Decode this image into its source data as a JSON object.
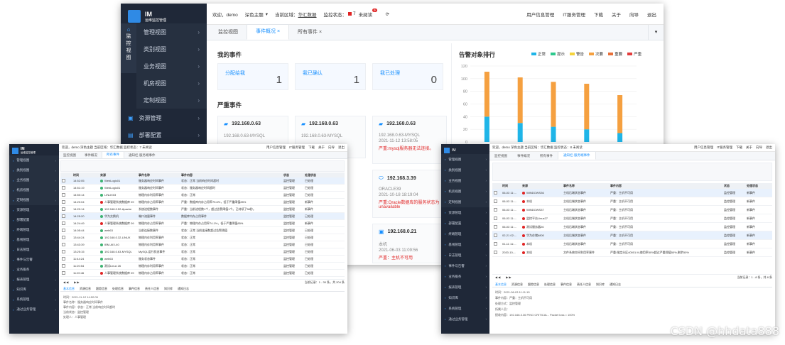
{
  "main_window": {
    "logo_text": "IM",
    "logo_sub": "运维监控管理",
    "side_tab": [
      "监",
      "控",
      "视",
      "图"
    ],
    "menu": [
      {
        "label": "管理视图"
      },
      {
        "label": "类别视图"
      },
      {
        "label": "业务视图"
      },
      {
        "label": "机房视图"
      },
      {
        "label": "定制视图"
      }
    ],
    "bottom_menu": [
      {
        "label": "资源管理"
      },
      {
        "label": "部署配置"
      }
    ],
    "topbar": {
      "welcome": "欢迎，demo",
      "theme": "深色主题",
      "region_label": "当前区域：",
      "region": "华汇数据",
      "status_label": "监控状态：",
      "status_count": "7",
      "unread": "未阅读",
      "badge": "9",
      "links": [
        "用户信息管理",
        "IT服务管理",
        "下载",
        "关于",
        "向导",
        "退出"
      ]
    },
    "tabs": [
      "监控视图",
      "事件概况",
      "所有事件"
    ],
    "my_events": {
      "title": "我的事件",
      "cards": [
        {
          "label": "分配给我",
          "value": "1"
        },
        {
          "label": "我已确认",
          "value": "1"
        },
        {
          "label": "我已处理",
          "value": "0"
        }
      ]
    },
    "severe": {
      "title": "严重事件",
      "cards": [
        {
          "host": "192.168.0.63",
          "line1": "192.168.0.63-MYSQL",
          "line2": "",
          "line3": ""
        },
        {
          "host": "192.168.0.63",
          "line1": "192.168.0.63-MYSQL",
          "line2": "",
          "line3": ""
        },
        {
          "host": "192.168.0.63",
          "line1": "192.168.0.63-MYSQL",
          "line2": "2021-11-12 13:58:05",
          "line3": "严重:mysql服务器无法连接。"
        },
        {
          "host": "192.168.3.39",
          "line1": "ORACLE39",
          "line2": "2021-10-18 18:19:04",
          "line3": "严重:Oracle数据库的服务状态为unavailable"
        },
        {
          "host": "192.168.0.21",
          "line1": "本机",
          "line2": "2021-06-03 11:09:56",
          "line3": "严重：主机不可用"
        }
      ]
    },
    "chart": {
      "title": "告警对象排行",
      "legend": [
        {
          "name": "正常",
          "color": "#1fb5e8"
        },
        {
          "name": "提示",
          "color": "#2ec98e"
        },
        {
          "name": "警告",
          "color": "#f5d33b"
        },
        {
          "name": "次要",
          "color": "#f5a040"
        },
        {
          "name": "重要",
          "color": "#e8703a"
        },
        {
          "name": "严重",
          "color": "#e23c3c"
        }
      ],
      "yticks": [
        "120",
        "100",
        "80",
        "60",
        "40",
        "20",
        "0"
      ]
    }
  },
  "chart_data": {
    "type": "bar",
    "title": "告警对象排行",
    "ylim": [
      0,
      120
    ],
    "categories": [
      "",
      "",
      "",
      "",
      ""
    ],
    "series": [
      {
        "name": "正常",
        "values": [
          40,
          30,
          24,
          20,
          14
        ]
      },
      {
        "name": "次要",
        "values": [
          71,
          72,
          71,
          72,
          60
        ]
      }
    ],
    "legend_position": "top"
  },
  "left_window": {
    "logo": "IM",
    "sub": "运维监控管理",
    "topbar": "欢迎，demo  深色主题  当前区域：华汇数据  监控状态：7 未阅读",
    "links": [
      "用户信息管理",
      "IT服务管理",
      "下载",
      "关于",
      "向导",
      "退出"
    ],
    "tabs": [
      "监控视图",
      "事件概况",
      "所有事件",
      "通知栏·服务端事件"
    ],
    "menu": [
      "管理视图",
      "类别视图",
      "业务视图",
      "机房视图",
      "定制视图",
      "资源管理",
      "部署配置",
      "终端管理",
      "基线管理",
      "日志管理",
      "事件与告警",
      "业务服务",
      "报表管理",
      "知识库",
      "系统管理",
      "通过业务管理"
    ],
    "columns": [
      "时间",
      "来源",
      "事件名称",
      "事件内容",
      "状态",
      "处理状态"
    ],
    "rows": [
      [
        "14:52:05",
        "WebLogic01",
        "服务器响应时间事件",
        "状态：正常 当前响应时间超时",
        "监控管理",
        "已处理"
      ],
      [
        "14:51:19",
        "WebLogic01",
        "服务器响应时间事件",
        "状态：服务器响应时间超时",
        "监控管理",
        "已处理"
      ],
      [
        "14:50:14",
        "LINUX03",
        "物理内存利用率事件",
        "状态：正常",
        "监控管理",
        "已处理"
      ],
      [
        "14:20:04",
        "人事管理系统数据库 09",
        "物理内存占用率事件",
        "严重：数据库内存占用率75.6%，低于严重阈值85%",
        "监控管理",
        "新事件"
      ],
      [
        "14:20:14",
        "192.168.0.52-Apache",
        "系统进程数事件",
        "严重：当前进程数1个，超过告警阈值1个。已持续了58秒。",
        "监控管理",
        "新事件"
      ],
      [
        "14:25:20",
        "华为交换机",
        "端口流量事件",
        "数据库内存占用事件",
        "监控管理",
        "已处理"
      ],
      [
        "14:24:49",
        "人事管理系统数据库 09",
        "物理内存占用率事件",
        "严重：物理内存占用率74.1%，低于严重阈值85%",
        "监控管理",
        "新事件"
      ],
      [
        "14:05:44",
        "web63",
        "当前连接数事件",
        "状态：正常 当前连接数超过告警阈值",
        "监控管理",
        "已处理"
      ],
      [
        "13:44:24",
        "192.168.0.32-LINUX",
        "物理内存利用率事件",
        "状态：正常",
        "监控管理",
        "已处理"
      ],
      [
        "13:43:39",
        "IBM-AIX-40",
        "物理内存利用率事件",
        "状态：正常",
        "监控管理",
        "已处理"
      ],
      [
        "13:25:15",
        "192.168.0.63-MYSQL",
        "MySQL运行状态事件",
        "状态：正常",
        "监控管理",
        "已处理"
      ],
      [
        "11:44:24",
        "web63",
        "服务状态事件",
        "状态：正常",
        "监控管理",
        "已处理"
      ],
      [
        "11:20:54",
        "测试Linux 26",
        "物理内存利用率事件",
        "状态：正常",
        "监控管理",
        "已处理"
      ],
      [
        "11:20:46",
        "人事管理系统数据库 09",
        "物理内存占用率事件",
        "状态：正常",
        "监控管理",
        "已处理"
      ]
    ],
    "pager": "当前记录：1 - 30 条，共 204 条",
    "detail_tabs": [
      "基本信息",
      "资源信息",
      "跟踪信息",
      "处理信息",
      "事件信息",
      "责任人信息",
      "知识库",
      "通知日志"
    ],
    "detail": [
      "时间：2021-11-12 14:52:05",
      "事件名称：服务器响应时间事件",
      "事件内容：状态：正常 当前响应时间超时",
      "当前状态：监控管理",
      "处理人：人事管理"
    ]
  },
  "right_window": {
    "logo": "IM",
    "topbar": "欢迎，demo  深色主题  当前区域：华汇数据  监控状态：8 未阅读",
    "links": [
      "用户信息管理",
      "IT服务管理",
      "下载",
      "关于",
      "向导",
      "退出"
    ],
    "tabs": [
      "监控视图",
      "事件概况",
      "所有事件",
      "通知栏·服务端事件"
    ],
    "menu": [
      "管理视图",
      "类别视图",
      "业务视图",
      "机房视图",
      "定制视图",
      "资源管理",
      "部署配置",
      "终端管理",
      "基线管理",
      "日志管理",
      "事件与告警",
      "业务服务",
      "报表管理",
      "知识库",
      "系统管理",
      "通过业务管理"
    ],
    "columns": [
      "时间",
      "来源",
      "事件名称",
      "事件内容",
      "状态",
      "处理状态"
    ],
    "rows": [
      [
        "06-03 11:...",
        "WINDOWS36",
        "主机后端状态事件",
        "严重：主机不可用",
        "监控管理",
        "新事件"
      ],
      [
        "06-03 11:...",
        "本机",
        "主机后端状态事件",
        "严重：主机不可用",
        "监控管理",
        "新事件"
      ],
      [
        "06-03 11:...",
        "WINDOWS37",
        "主机后端状态事件",
        "严重：主机不可用",
        "监控管理",
        "新事件"
      ],
      [
        "06-03 11:...",
        "监控平台Linux27",
        "主机后端状态事件",
        "严重：主机不可用",
        "监控管理",
        "新事件"
      ],
      [
        "06-03 11:...",
        "测试服务器26",
        "主机后端状态事件",
        "严重：主机不可用",
        "监控管理",
        "新事件"
      ],
      [
        "02-21 02:...",
        "华为存储6800",
        "主机后端状态事件",
        "严重：主机不可用",
        "监控管理",
        "新事件"
      ],
      [
        "01-11 11:...",
        "本机",
        "主机后端状态事件",
        "严重：主机不可用",
        "监控管理",
        "新事件"
      ],
      [
        "2020-10-...",
        "本机",
        "文件系统空间利用率事件",
        "严重:指定分区40001 M,使用率50%超过严重阈值50%,剩余50%",
        "监控管理",
        "新事件"
      ]
    ],
    "pager": "当前记录：1 - 8 条，共 8 条",
    "detail_tabs": [
      "基本信息",
      "资源信息",
      "跟踪信息",
      "处理信息",
      "事件信息",
      "责任人信息",
      "知识库",
      "通知日志"
    ],
    "detail": [
      "时间：2021-06-03 11:11:15",
      "事件内容：严重：主机不可用",
      "处理方式：监控管理",
      "所属人员：",
      "接收内容：192.168.3.36 PING CRITICAL - Packet loss = 100%"
    ]
  },
  "watermark": "CSDN @hhdata888"
}
